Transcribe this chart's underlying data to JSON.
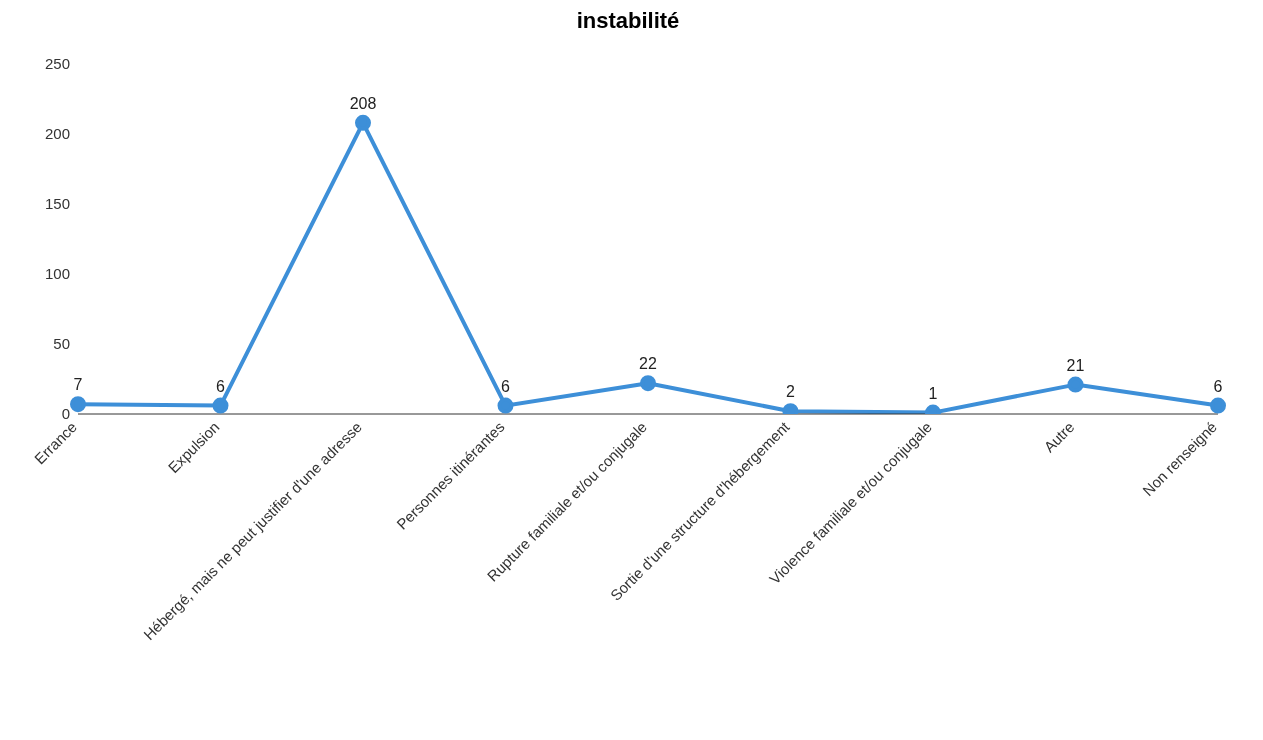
{
  "chart_data": {
    "type": "line",
    "title": "instabilité",
    "categories": [
      "Errance",
      "Expulsion",
      "Hébergé, mais ne peut justifier d'une adresse",
      "Personnes itinérantes",
      "Rupture familiale et/ou conjugale",
      "Sortie d'une structure d'hébergement",
      "Violence familiale et/ou conjugale",
      "Autre",
      "Non renseigné"
    ],
    "values": [
      7,
      6,
      208,
      6,
      22,
      2,
      1,
      21,
      6
    ],
    "color": "#3d8fd8",
    "marker": "circle",
    "data_labels": true,
    "ylim": [
      0,
      250
    ],
    "yticks": [
      0,
      50,
      100,
      150,
      200,
      250
    ],
    "grid": false,
    "legend": false
  }
}
